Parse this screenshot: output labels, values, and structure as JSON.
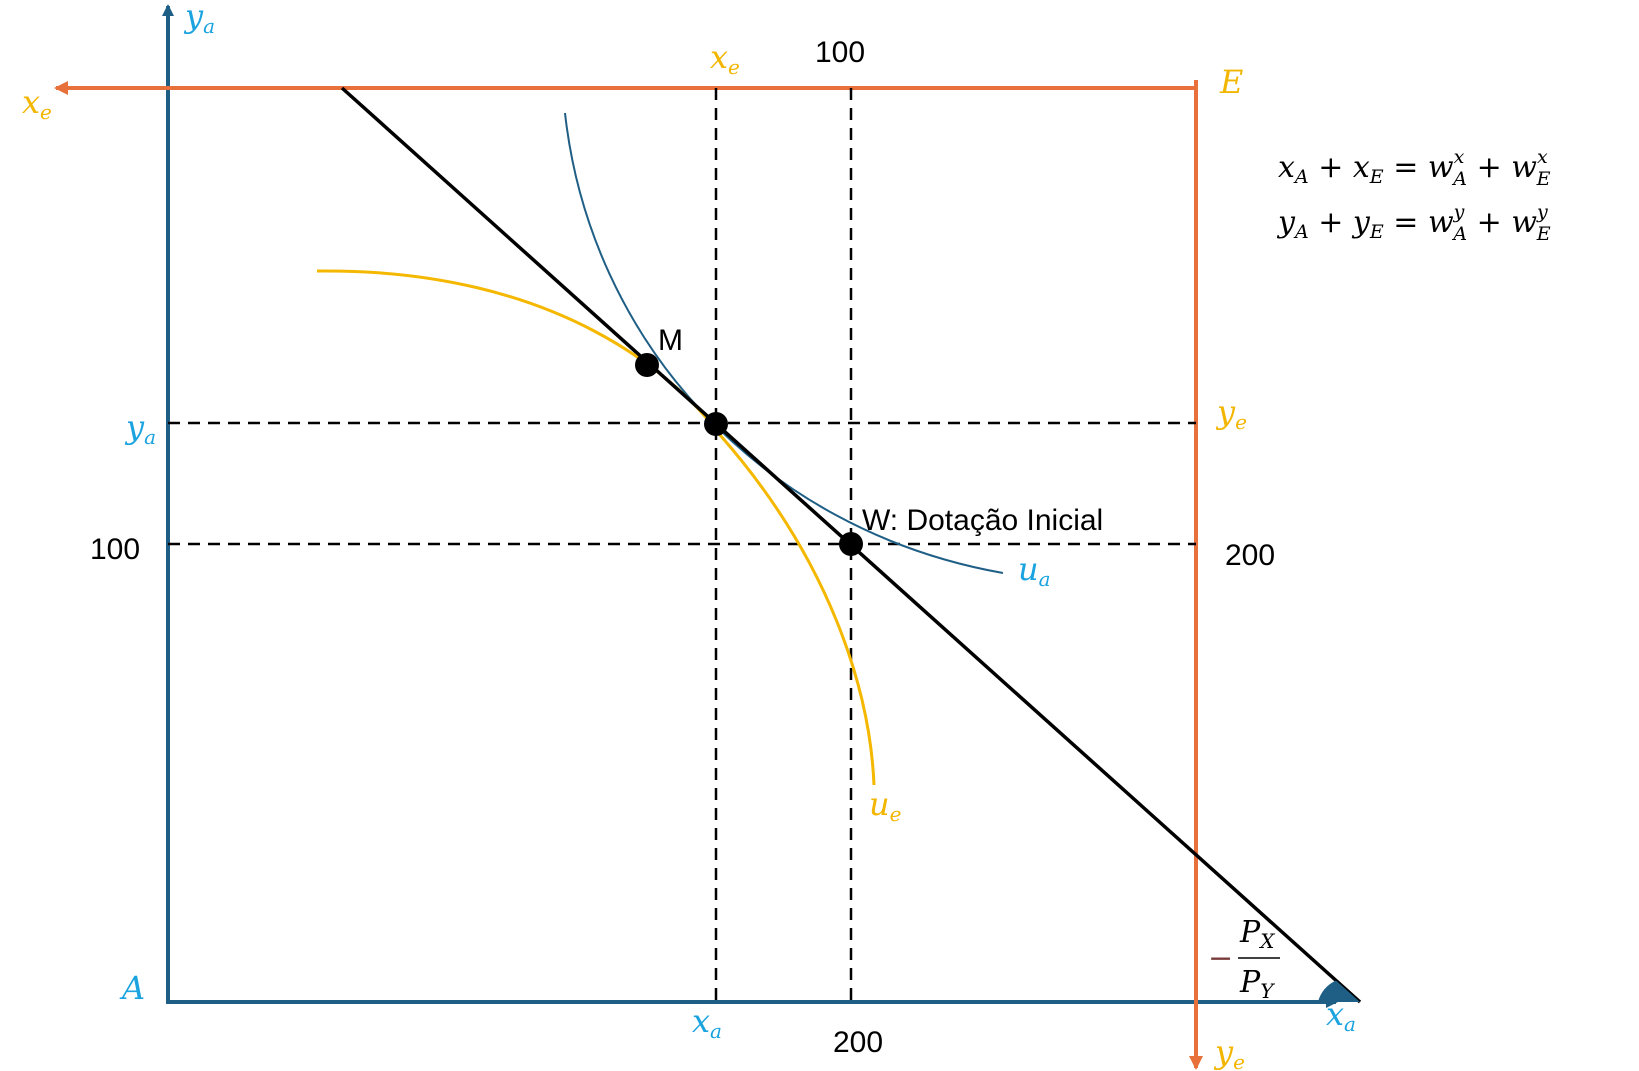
{
  "colors": {
    "agent_a": "#1f5f86",
    "agent_a_label": "#1aa3df",
    "agent_e": "#e8703a",
    "agent_e_label": "#f2b600",
    "ua_curve": "#1f5f86",
    "ue_curve": "#f5b800",
    "budget_line": "#000000",
    "dashed": "#000000"
  },
  "axes": {
    "agent_a_origin": "A",
    "agent_a_y_base": "y",
    "agent_a_y_sub": "a",
    "agent_a_x_base": "x",
    "agent_a_x_sub": "a",
    "agent_e_origin": "E",
    "agent_e_x_base": "x",
    "agent_e_x_sub": "e",
    "agent_e_y_base": "y",
    "agent_e_y_sub": "e"
  },
  "ticks": {
    "left_100": "100",
    "top_100": "100",
    "bottom_200": "200",
    "right_200": "200"
  },
  "guides": {
    "xa_base": "x",
    "xa_sub": "a",
    "xe_base": "x",
    "xe_sub": "e",
    "ya_base": "y",
    "ya_sub": "a",
    "ye_base": "y",
    "ye_sub": "e"
  },
  "points": {
    "m_label": "M",
    "w_label": "W: Dotação Inicial"
  },
  "curves": {
    "ua_base": "u",
    "ua_sub": "a",
    "ue_base": "u",
    "ue_sub": "e"
  },
  "slope": {
    "minus": "−",
    "num_base": "P",
    "num_sub": "X",
    "den_base": "P",
    "den_sub": "Y"
  },
  "equations": {
    "eq1": {
      "t1": "x",
      "s1": "A",
      "op1": " + ",
      "t2": "x",
      "s2": "E",
      "op2": " = ",
      "t3": "w",
      "s3": "A",
      "p3": "x",
      "op3": " + ",
      "t4": "w",
      "s4": "E",
      "p4": "x"
    },
    "eq2": {
      "t1": "y",
      "s1": "A",
      "op1": " + ",
      "t2": "y",
      "s2": "E",
      "op2": " = ",
      "t3": "w",
      "s3": "A",
      "p3": "y",
      "op3": " + ",
      "t4": "w",
      "s4": "E",
      "p4": "y"
    }
  }
}
